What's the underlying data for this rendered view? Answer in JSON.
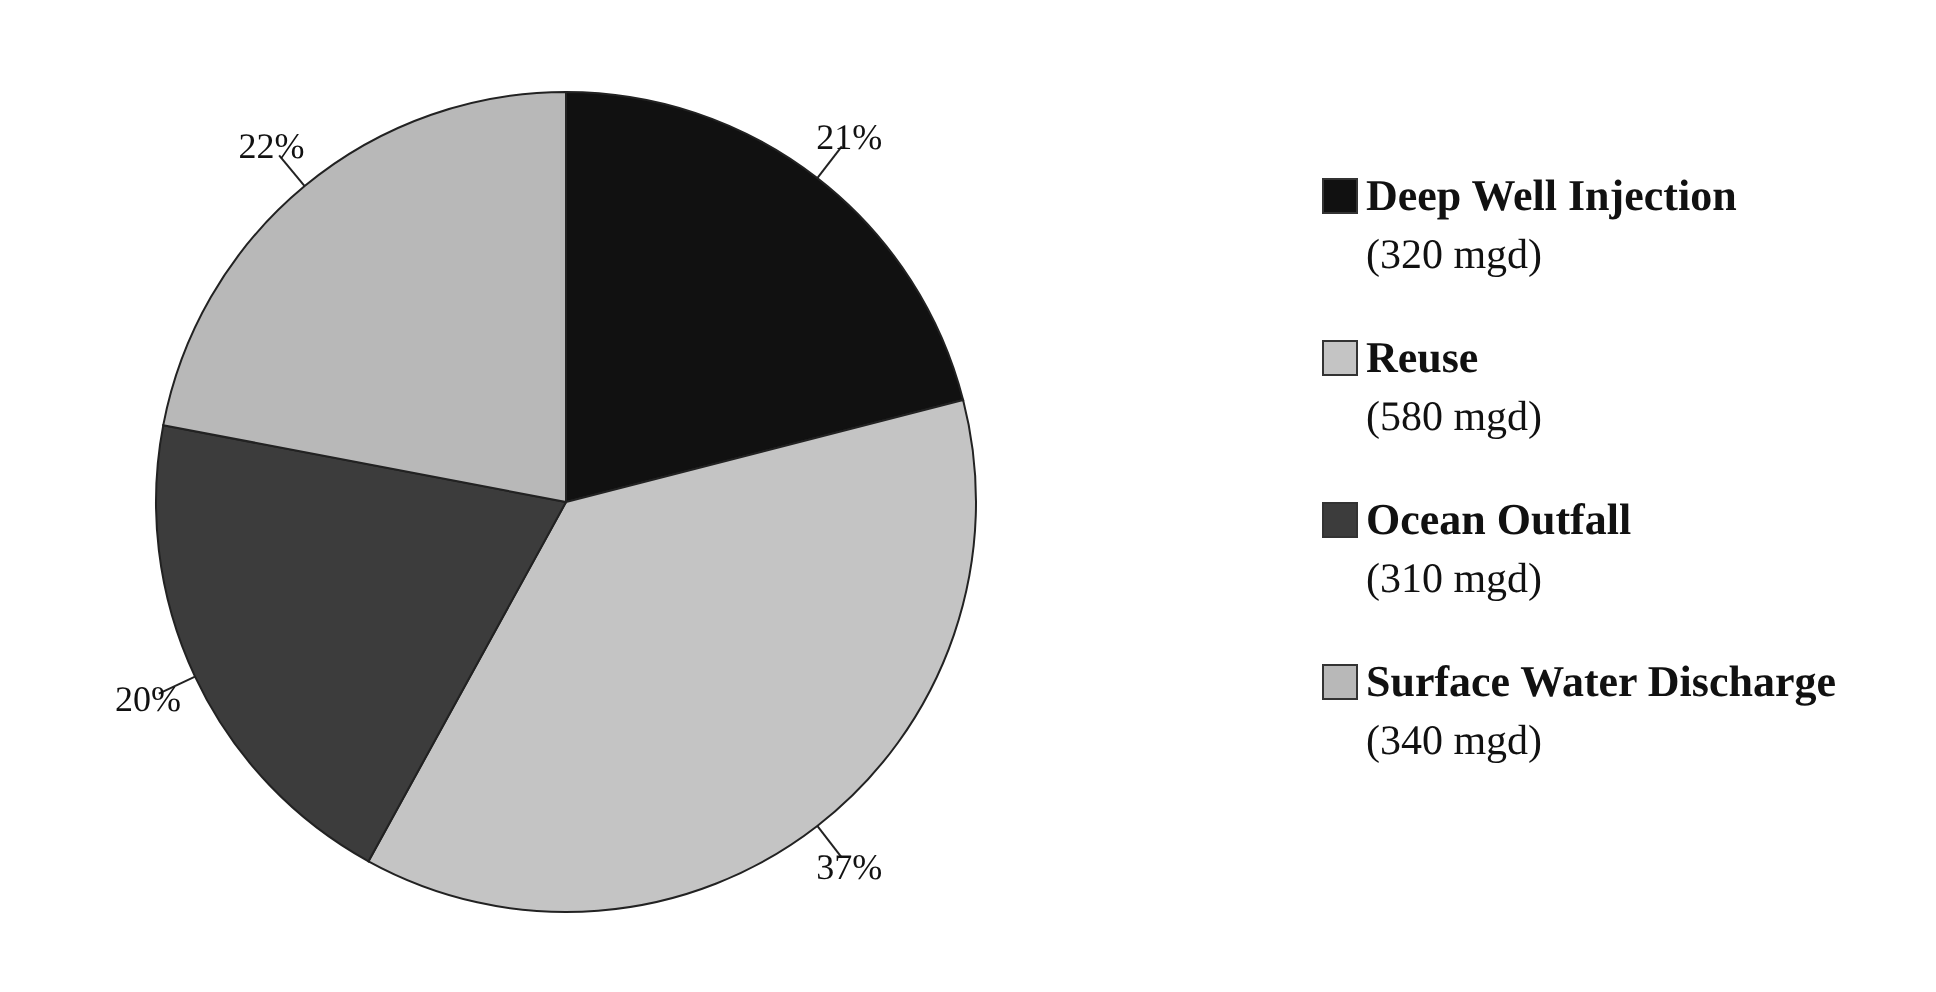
{
  "chart_data": {
    "type": "pie",
    "categories": [
      "Deep Well Injection\n(320 mgd)",
      "Reuse\n(580 mgd)",
      "Ocean Outfall\n(310 mgd)",
      "Surface Water Discharge\n(340 mgd)"
    ],
    "values": [
      21,
      37,
      20,
      22
    ],
    "colors": [
      "#111111",
      "#c4c4c4",
      "#3c3c3c",
      "#b8b8b8"
    ],
    "value_labels": [
      "21%",
      "37%",
      "20%",
      "22%"
    ],
    "legend": "right"
  }
}
